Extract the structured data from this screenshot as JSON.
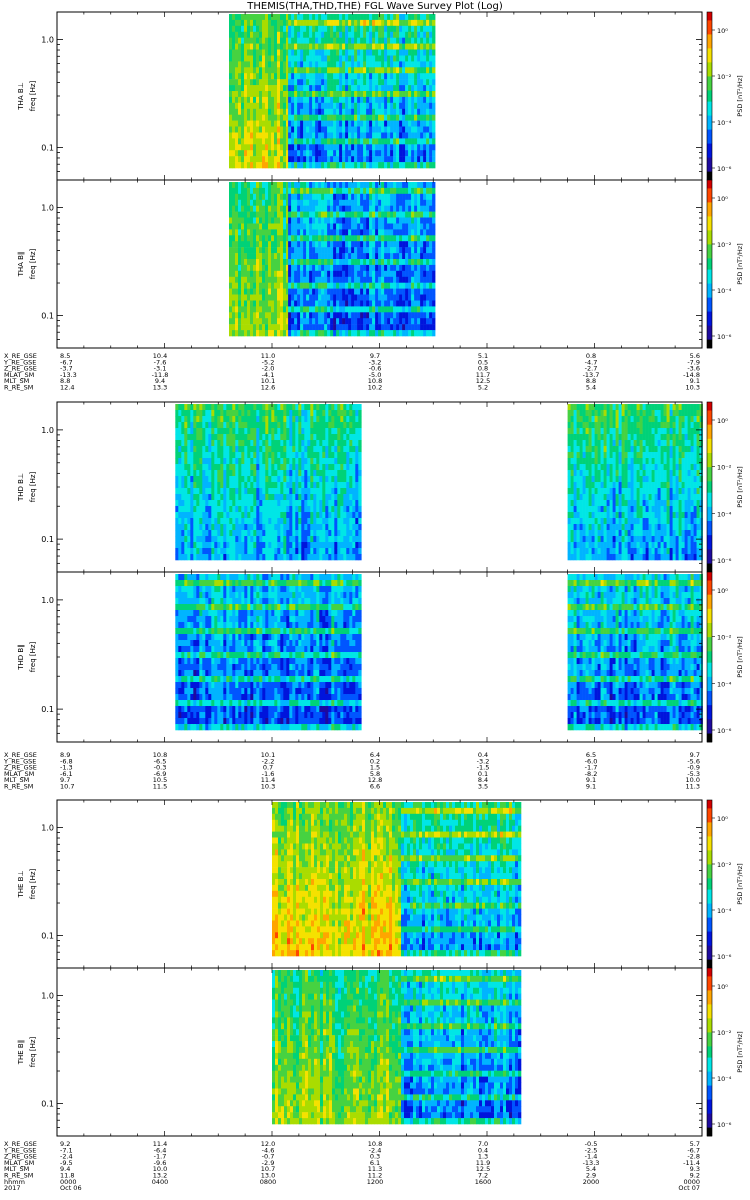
{
  "title": "THEMIS(THA,THD,THE) FGL Wave Survey Plot (Log)",
  "panel_labels": {
    "tha_perp": "THA B⊥",
    "tha_par": "THA B∥",
    "thd_perp": "THD B⊥",
    "thd_par": "THD B∥",
    "the_perp": "THE B⊥",
    "the_par": "THE B∥"
  },
  "freq_axis_label": "freq [Hz]",
  "psd_axis_label": "PSD [nT²/Hz]",
  "y_tick_labels": [
    "1.0",
    "0.1"
  ],
  "colorbar_tick_labels": [
    "10⁰",
    "10⁻²",
    "10⁻⁴",
    "10⁻⁶"
  ],
  "colors": {
    "colormap": [
      "#000000",
      "#1e0a9e",
      "#0014dc",
      "#0055ff",
      "#00b4ff",
      "#00e6e6",
      "#00d278",
      "#46d241",
      "#aadc00",
      "#f5e100",
      "#ffa500",
      "#ff4600",
      "#d20000"
    ]
  },
  "ephemeris": {
    "tha": {
      "rows": [
        {
          "label": "X_RE_GSE",
          "values": [
            "8.5",
            "10.4",
            "11.0",
            "9.7",
            "5.1",
            "0.8",
            "5.6"
          ]
        },
        {
          "label": "Y_RE_GSE",
          "values": [
            "-6.7",
            "-7.6",
            "-5.2",
            "-3.2",
            "0.5",
            "-4.7",
            "-7.9"
          ]
        },
        {
          "label": "Z_RE_GSE",
          "values": [
            "-3.7",
            "-3.1",
            "-2.0",
            "-0.6",
            "0.8",
            "-2.7",
            "-3.6"
          ]
        },
        {
          "label": "MLAT_SM",
          "values": [
            "-13.3",
            "-11.8",
            "-4.1",
            "-5.0",
            "11.7",
            "-13.7",
            "-14.8"
          ]
        },
        {
          "label": "MLT_SM",
          "values": [
            "8.8",
            "9.4",
            "10.1",
            "10.8",
            "12.5",
            "8.8",
            "9.1"
          ]
        },
        {
          "label": "R_RE_SM",
          "values": [
            "12.4",
            "13.3",
            "12.6",
            "10.2",
            "5.2",
            "5.4",
            "10.3"
          ]
        }
      ]
    },
    "thd": {
      "rows": [
        {
          "label": "X_RE_GSE",
          "values": [
            "8.9",
            "10.8",
            "10.1",
            "6.4",
            "0.4",
            "6.5",
            "9.7"
          ]
        },
        {
          "label": "Y_RE_GSE",
          "values": [
            "-6.8",
            "-6.5",
            "-2.2",
            "0.2",
            "-3.2",
            "-6.0",
            "-5.6"
          ]
        },
        {
          "label": "Z_RE_GSE",
          "values": [
            "-1.3",
            "-0.3",
            "0.7",
            "1.5",
            "-1.5",
            "-1.7",
            "-0.9"
          ]
        },
        {
          "label": "MLAT_SM",
          "values": [
            "-6.1",
            "-6.9",
            "-1.6",
            "5.8",
            "0.1",
            "-8.2",
            "-5.3"
          ]
        },
        {
          "label": "MLT_SM",
          "values": [
            "9.7",
            "10.5",
            "11.4",
            "12.8",
            "8.4",
            "9.1",
            "10.0"
          ]
        },
        {
          "label": "R_RE_SM",
          "values": [
            "10.7",
            "11.5",
            "10.3",
            "6.6",
            "3.5",
            "9.1",
            "11.3"
          ]
        }
      ]
    },
    "the": {
      "rows": [
        {
          "label": "X_RE_GSE",
          "values": [
            "9.2",
            "11.4",
            "12.0",
            "10.8",
            "7.0",
            "-0.5",
            "5.7"
          ]
        },
        {
          "label": "Y_RE_GSE",
          "values": [
            "-7.1",
            "-6.4",
            "-4.6",
            "-2.4",
            "0.4",
            "-2.5",
            "-6.7"
          ]
        },
        {
          "label": "Z_RE_GSE",
          "values": [
            "-2.4",
            "-1.7",
            "-0.7",
            "0.3",
            "1.3",
            "-1.4",
            "-2.8"
          ]
        },
        {
          "label": "MLAT_SM",
          "values": [
            "-9.5",
            "-9.6",
            "-2.9",
            "6.1",
            "11.9",
            "-13.3",
            "-11.4"
          ]
        },
        {
          "label": "MLT_SM",
          "values": [
            "9.4",
            "10.0",
            "10.7",
            "11.3",
            "12.5",
            "5.4",
            "9.3"
          ]
        },
        {
          "label": "R_RE_SM",
          "values": [
            "11.8",
            "13.2",
            "13.0",
            "11.2",
            "7.2",
            "2.9",
            "9.2"
          ]
        }
      ]
    }
  },
  "time_axis": {
    "hhmm_label": "hhmm",
    "year_label": "2017",
    "hhmm_values": [
      "0000",
      "0400",
      "0800",
      "1200",
      "1600",
      "2000",
      "0000"
    ],
    "date_labels": [
      "Oct 06",
      "Oct 07"
    ]
  },
  "chart_data": {
    "type": "heatmap",
    "title": "THEMIS(THA,THD,THE) FGL Wave Survey Plot (Log)",
    "x_unit": "hours (UT) from 2017 Oct 06 0000",
    "xlim": [
      0,
      24
    ],
    "ylabel": "freq [Hz]",
    "y_scale": "log",
    "ylim": [
      0.05,
      1.8
    ],
    "colorbar": {
      "label": "PSD [nT²/Hz]",
      "scale": "log",
      "range": [
        1e-06,
        10
      ]
    },
    "panels": [
      {
        "probe": "THA",
        "component": "perp",
        "label": "THA B⊥",
        "segments": [
          {
            "start": 6.4,
            "end": 8.6,
            "psd_log_low": -1.3,
            "psd_log_high": -2.4,
            "profile": "hot"
          },
          {
            "start": 8.6,
            "end": 14.0,
            "psd_log_low": -4.6,
            "psd_log_high": -3.0,
            "profile": "cool"
          }
        ]
      },
      {
        "probe": "THA",
        "component": "par",
        "label": "THA B∥",
        "segments": [
          {
            "start": 6.4,
            "end": 8.6,
            "psd_log_low": -1.7,
            "psd_log_high": -2.6,
            "profile": "hot"
          },
          {
            "start": 8.6,
            "end": 14.0,
            "psd_log_low": -4.9,
            "psd_log_high": -4.0,
            "profile": "cool"
          }
        ]
      },
      {
        "probe": "THD",
        "component": "perp",
        "label": "THD B⊥",
        "segments": [
          {
            "start": 4.4,
            "end": 11.3,
            "psd_log_low": -4.2,
            "psd_log_high": -2.8,
            "profile": "warm"
          },
          {
            "start": 19.0,
            "end": 24.0,
            "psd_log_low": -4.2,
            "psd_log_high": -2.6,
            "profile": "warm"
          }
        ]
      },
      {
        "probe": "THD",
        "component": "par",
        "label": "THD B∥",
        "segments": [
          {
            "start": 4.4,
            "end": 11.3,
            "psd_log_low": -5.0,
            "psd_log_high": -3.8,
            "profile": "cool"
          },
          {
            "start": 19.0,
            "end": 24.0,
            "psd_log_low": -4.8,
            "psd_log_high": -3.6,
            "profile": "cool"
          }
        ]
      },
      {
        "probe": "THE",
        "component": "perp",
        "label": "THE B⊥",
        "segments": [
          {
            "start": 8.0,
            "end": 12.8,
            "psd_log_low": -0.9,
            "psd_log_high": -2.2,
            "profile": "hot"
          },
          {
            "start": 12.8,
            "end": 17.2,
            "psd_log_low": -4.3,
            "psd_log_high": -2.9,
            "profile": "cool"
          }
        ]
      },
      {
        "probe": "THE",
        "component": "par",
        "label": "THE B∥",
        "segments": [
          {
            "start": 8.0,
            "end": 12.8,
            "psd_log_low": -1.8,
            "psd_log_high": -2.8,
            "profile": "hot"
          },
          {
            "start": 12.8,
            "end": 17.2,
            "psd_log_low": -4.7,
            "psd_log_high": -3.6,
            "profile": "cool"
          }
        ]
      }
    ]
  }
}
